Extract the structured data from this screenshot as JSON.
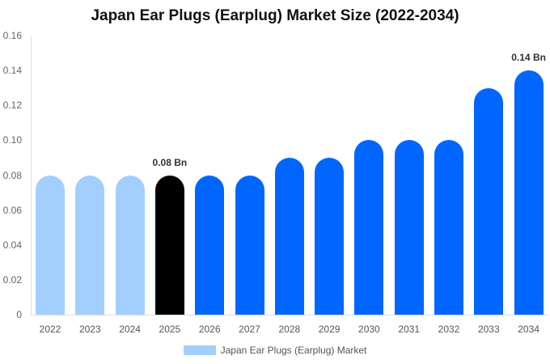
{
  "chart_data": {
    "type": "bar",
    "title": "Japan Ear Plugs (Earplug) Market Size (2022-2034)",
    "xlabel": "",
    "ylabel": "",
    "ylim": [
      0,
      0.16
    ],
    "yticks": [
      "0",
      "0.02",
      "0.04",
      "0.06",
      "0.08",
      "0.10",
      "0.12",
      "0.14",
      "0.16"
    ],
    "categories": [
      "2022",
      "2023",
      "2024",
      "2025",
      "2026",
      "2027",
      "2028",
      "2029",
      "2030",
      "2031",
      "2032",
      "2033",
      "2034"
    ],
    "series": [
      {
        "name": "Japan Ear Plugs (Earplug) Market",
        "values": [
          0.08,
          0.08,
          0.08,
          0.08,
          0.08,
          0.08,
          0.09,
          0.09,
          0.1,
          0.1,
          0.1,
          0.13,
          0.14
        ]
      }
    ],
    "bar_colors": [
      "#a3cfff",
      "#a3cfff",
      "#a3cfff",
      "#000000",
      "#0066ff",
      "#0066ff",
      "#0066ff",
      "#0066ff",
      "#0066ff",
      "#0066ff",
      "#0066ff",
      "#0066ff",
      "#0066ff"
    ],
    "annotations": [
      {
        "index": 3,
        "text": "0.08 Bn"
      },
      {
        "index": 12,
        "text": "0.14 Bn"
      }
    ],
    "grid": false,
    "legend_position": "bottom"
  },
  "legend": {
    "label": "Japan Ear Plugs (Earplug) Market"
  }
}
